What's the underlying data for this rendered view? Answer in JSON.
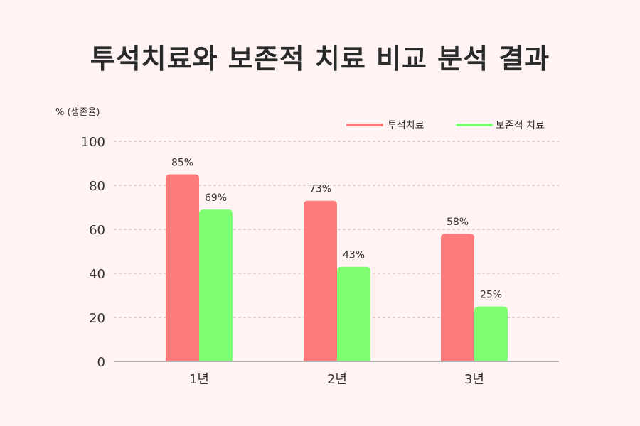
{
  "chart_data": {
    "type": "bar",
    "title": "투석치료와 보존적 치료 비교 분석 결과",
    "ylabel": "% (생존율)",
    "xlabel": "",
    "ylim": [
      0,
      100
    ],
    "yticks": [
      0,
      20,
      40,
      60,
      80,
      100
    ],
    "grid": true,
    "legend_position": "top-right",
    "categories": [
      "1년",
      "2년",
      "3년"
    ],
    "series": [
      {
        "name": "투석치료",
        "color": "#ff7b7b",
        "values": [
          85,
          73,
          58
        ],
        "labels": [
          "85%",
          "73%",
          "58%"
        ]
      },
      {
        "name": "보존적 치료",
        "color": "#80ff72",
        "values": [
          69,
          43,
          25
        ],
        "labels": [
          "69%",
          "43%",
          "25%"
        ]
      }
    ]
  }
}
